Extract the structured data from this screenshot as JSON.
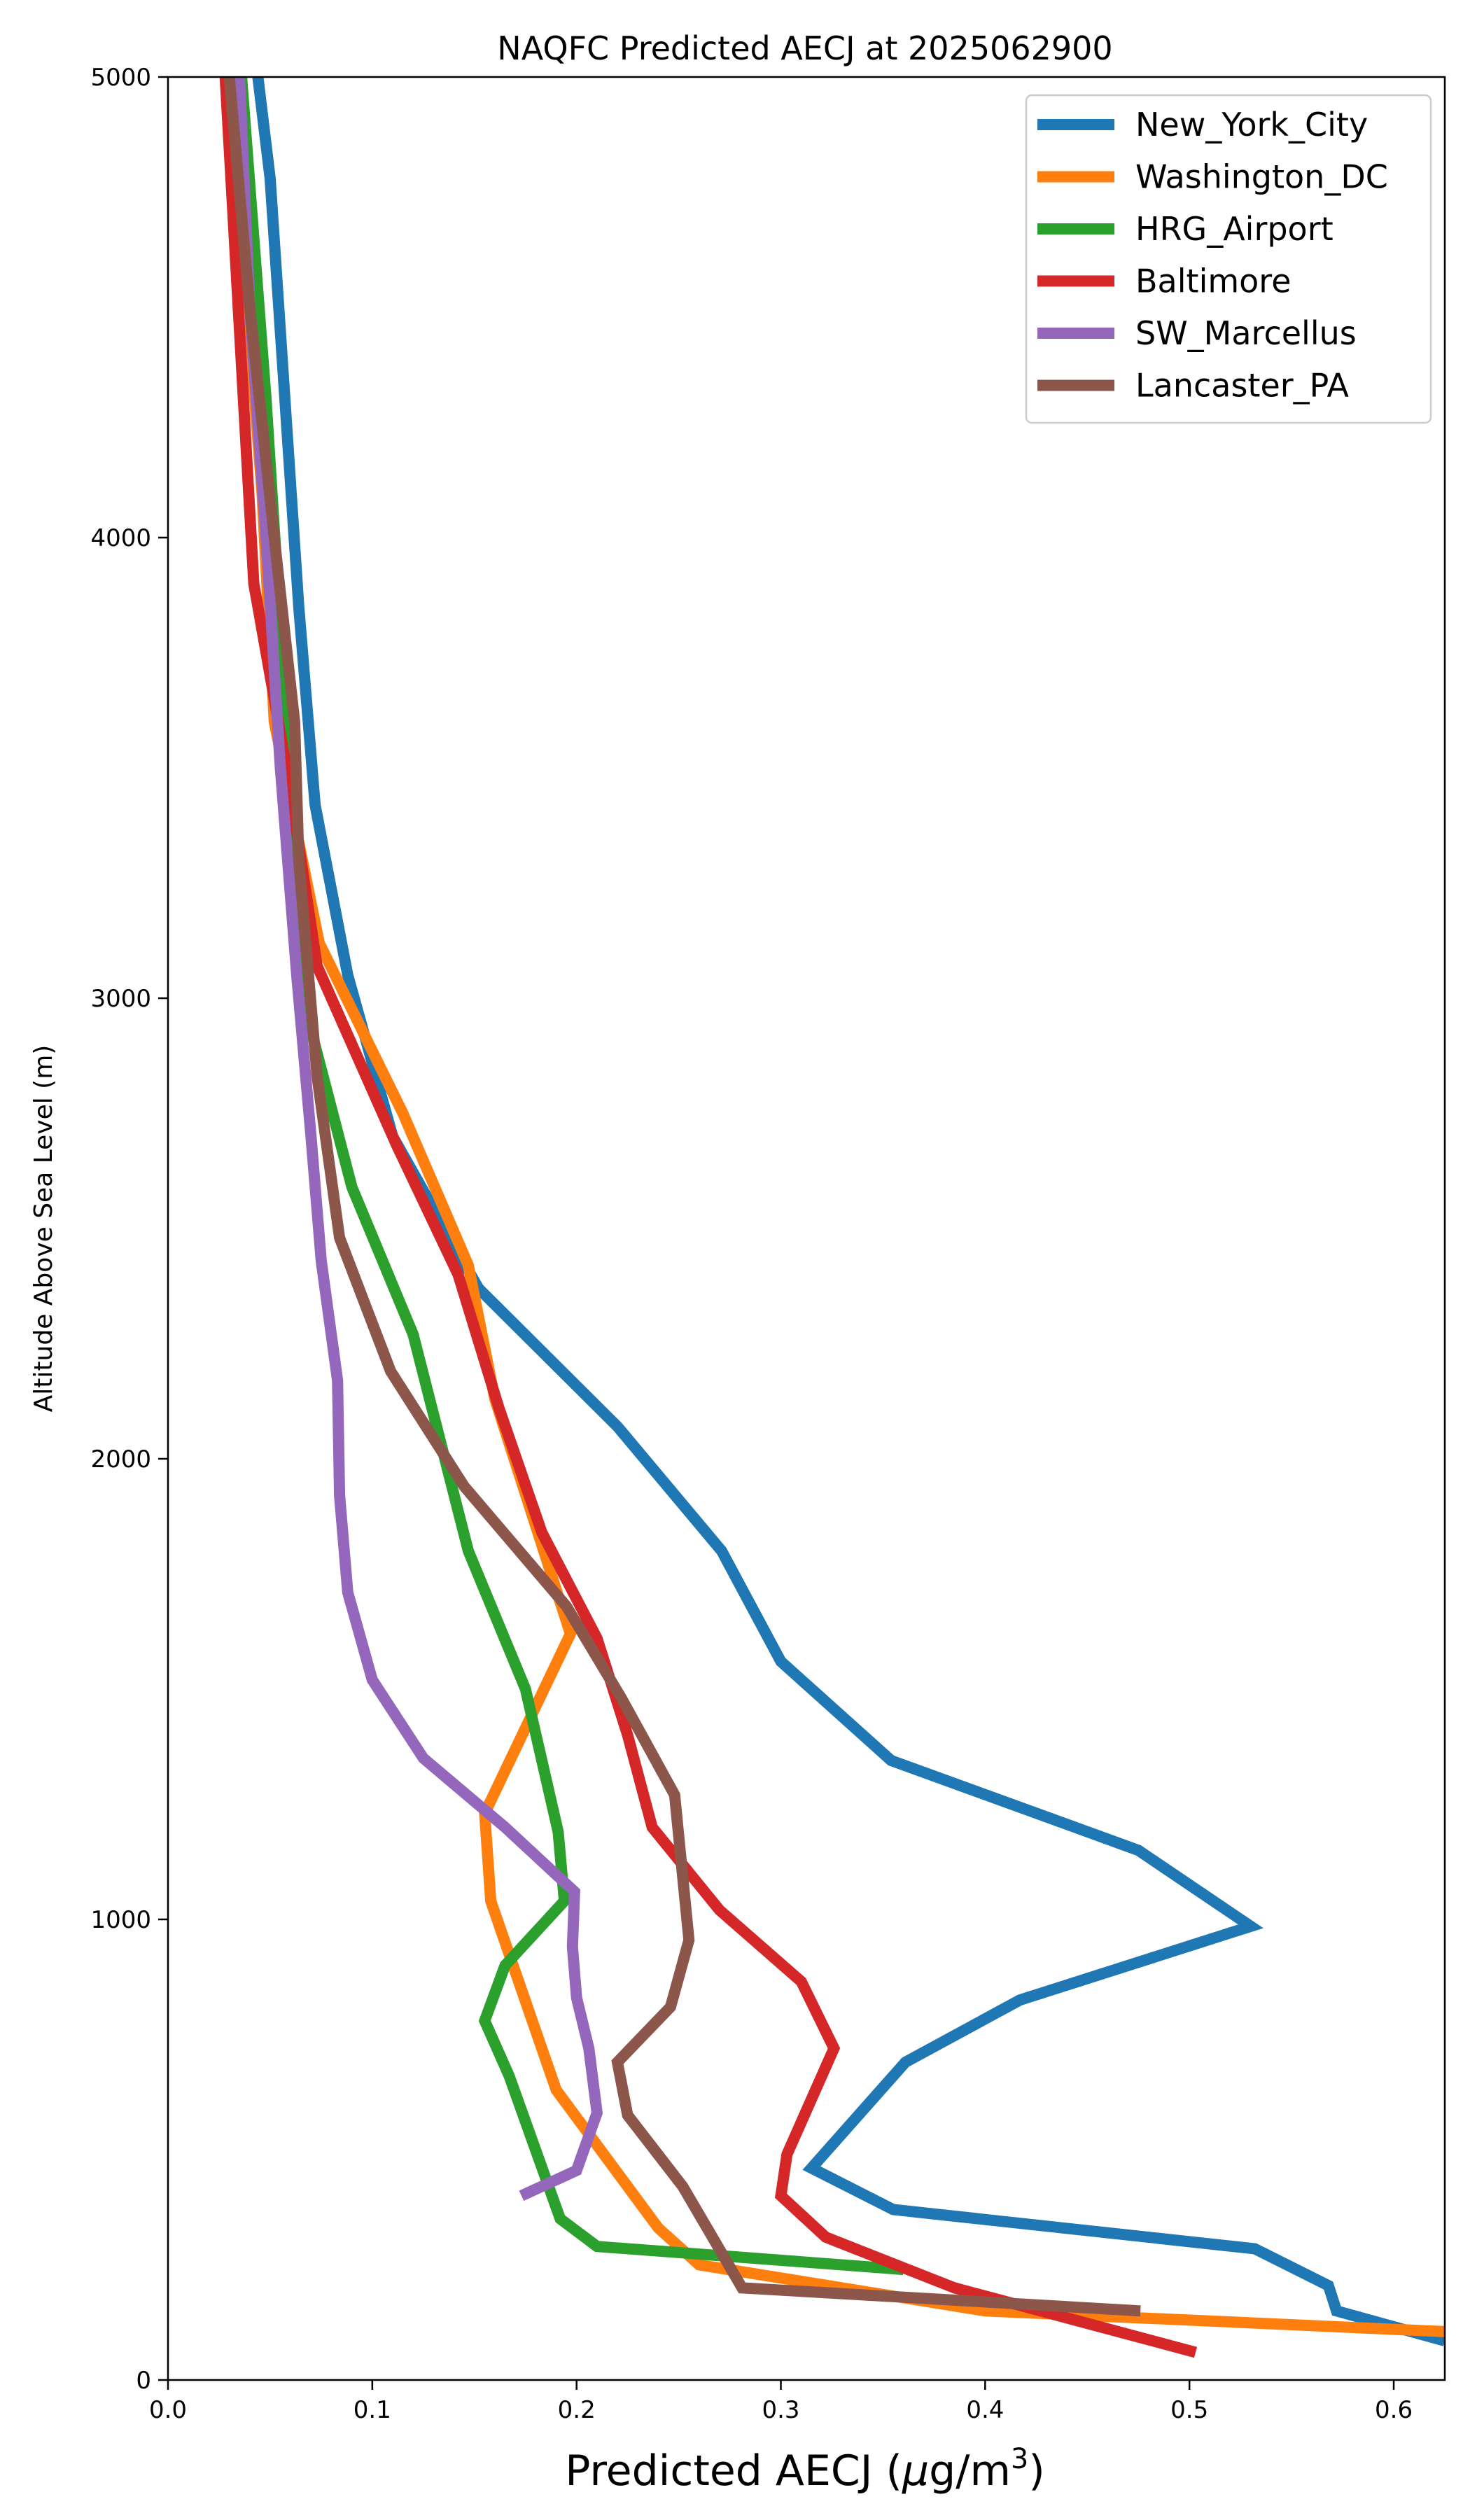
{
  "chart_data": {
    "type": "line",
    "title": "NAQFC Predicted AECJ at 2025062900",
    "xlabel_main": "Predicted AECJ (",
    "xlabel_mu": "μ",
    "xlabel_unit": "g/m",
    "xlabel_sup": "3",
    "xlabel_close": ")",
    "ylabel": "Altitude Above Sea Level (m)",
    "xlim": [
      0.0,
      0.625
    ],
    "ylim": [
      0,
      5000
    ],
    "x_ticks": [
      "0.0",
      "0.1",
      "0.2",
      "0.3",
      "0.4",
      "0.5",
      "0.6"
    ],
    "y_ticks": [
      "0",
      "1000",
      "2000",
      "3000",
      "4000",
      "5000"
    ],
    "grid": false,
    "legend_position": "top-right",
    "series": [
      {
        "name": "New_York_City",
        "color": "#1f77b4",
        "points": [
          [
            0.625,
            85
          ],
          [
            0.572,
            150
          ],
          [
            0.568,
            205
          ],
          [
            0.532,
            285
          ],
          [
            0.355,
            370
          ],
          [
            0.315,
            460
          ],
          [
            0.361,
            690
          ],
          [
            0.417,
            825
          ],
          [
            0.53,
            985
          ],
          [
            0.475,
            1150
          ],
          [
            0.354,
            1345
          ],
          [
            0.3,
            1560
          ],
          [
            0.271,
            1800
          ],
          [
            0.22,
            2070
          ],
          [
            0.152,
            2370
          ],
          [
            0.11,
            2700
          ],
          [
            0.088,
            3050
          ],
          [
            0.072,
            3420
          ],
          [
            0.064,
            3850
          ],
          [
            0.05,
            4780
          ],
          [
            0.044,
            5000
          ]
        ]
      },
      {
        "name": "Washington_DC",
        "color": "#ff7f0e",
        "points": [
          [
            0.625,
            105
          ],
          [
            0.4,
            150
          ],
          [
            0.26,
            250
          ],
          [
            0.24,
            330
          ],
          [
            0.19,
            630
          ],
          [
            0.158,
            1040
          ],
          [
            0.155,
            1230
          ],
          [
            0.197,
            1620
          ],
          [
            0.16,
            2130
          ],
          [
            0.147,
            2420
          ],
          [
            0.115,
            2750
          ],
          [
            0.074,
            3120
          ],
          [
            0.052,
            3600
          ],
          [
            0.046,
            4100
          ],
          [
            0.03,
            5000
          ]
        ]
      },
      {
        "name": "HRG_Airport",
        "color": "#2ca02c",
        "points": [
          [
            0.36,
            240
          ],
          [
            0.21,
            290
          ],
          [
            0.192,
            350
          ],
          [
            0.167,
            660
          ],
          [
            0.155,
            780
          ],
          [
            0.165,
            900
          ],
          [
            0.194,
            1040
          ],
          [
            0.191,
            1190
          ],
          [
            0.175,
            1500
          ],
          [
            0.147,
            1800
          ],
          [
            0.12,
            2270
          ],
          [
            0.09,
            2590
          ],
          [
            0.066,
            3000
          ],
          [
            0.058,
            3600
          ],
          [
            0.048,
            4300
          ],
          [
            0.036,
            5000
          ]
        ]
      },
      {
        "name": "Baltimore",
        "color": "#d62728",
        "points": [
          [
            0.503,
            60
          ],
          [
            0.385,
            200
          ],
          [
            0.322,
            310
          ],
          [
            0.3,
            400
          ],
          [
            0.303,
            490
          ],
          [
            0.326,
            720
          ],
          [
            0.31,
            865
          ],
          [
            0.27,
            1020
          ],
          [
            0.237,
            1200
          ],
          [
            0.225,
            1400
          ],
          [
            0.21,
            1610
          ],
          [
            0.183,
            1840
          ],
          [
            0.162,
            2110
          ],
          [
            0.142,
            2400
          ],
          [
            0.112,
            2680
          ],
          [
            0.073,
            3070
          ],
          [
            0.06,
            3450
          ],
          [
            0.042,
            3900
          ],
          [
            0.028,
            5000
          ]
        ]
      },
      {
        "name": "SW_Marcellus",
        "color": "#9467bd",
        "points": [
          [
            0.173,
            400
          ],
          [
            0.2,
            455
          ],
          [
            0.21,
            580
          ],
          [
            0.206,
            720
          ],
          [
            0.2,
            830
          ],
          [
            0.198,
            940
          ],
          [
            0.199,
            1060
          ],
          [
            0.165,
            1200
          ],
          [
            0.125,
            1350
          ],
          [
            0.1,
            1520
          ],
          [
            0.088,
            1710
          ],
          [
            0.084,
            1920
          ],
          [
            0.083,
            2170
          ],
          [
            0.075,
            2430
          ],
          [
            0.07,
            2700
          ],
          [
            0.063,
            3050
          ],
          [
            0.055,
            3500
          ],
          [
            0.048,
            4000
          ],
          [
            0.04,
            4500
          ],
          [
            0.035,
            5000
          ]
        ]
      },
      {
        "name": "Lancaster_PA",
        "color": "#8c564b",
        "points": [
          [
            0.476,
            150
          ],
          [
            0.281,
            200
          ],
          [
            0.252,
            420
          ],
          [
            0.225,
            575
          ],
          [
            0.22,
            690
          ],
          [
            0.246,
            810
          ],
          [
            0.255,
            955
          ],
          [
            0.248,
            1270
          ],
          [
            0.222,
            1480
          ],
          [
            0.195,
            1680
          ],
          [
            0.145,
            1940
          ],
          [
            0.109,
            2190
          ],
          [
            0.084,
            2480
          ],
          [
            0.073,
            2830
          ],
          [
            0.064,
            3300
          ],
          [
            0.062,
            3600
          ],
          [
            0.052,
            4000
          ],
          [
            0.04,
            4500
          ],
          [
            0.03,
            5000
          ]
        ]
      }
    ]
  }
}
